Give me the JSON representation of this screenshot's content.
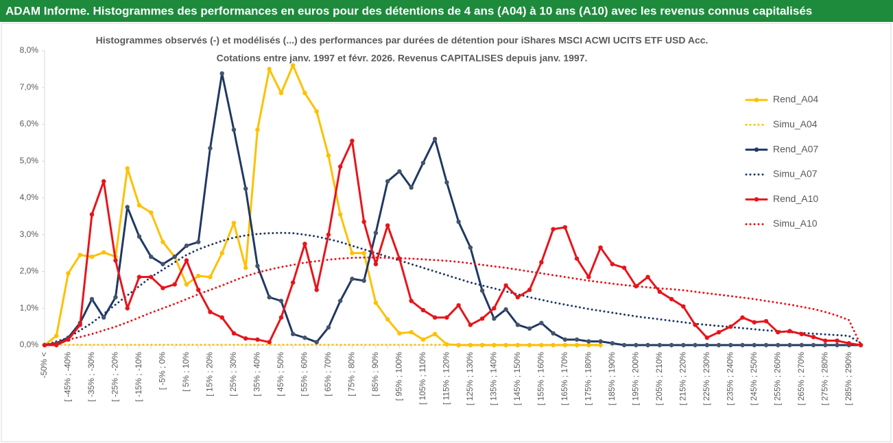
{
  "header": {
    "title": "ADAM Informe. Histogrammes des performances en euros pour des détentions de 4 ans (A04) à 10 ans (A10) avec les revenus connus capitalisés"
  },
  "chart_data": {
    "type": "line",
    "title": "Histogrammes observés (-) et modélisés (...) des performances par durées de détention pour iShares MSCI ACWI UCITS ETF USD Acc.",
    "subtitle": "Cotations entre janv. 1997 et févr. 2026. Revenus CAPITALISES depuis janv. 1997.",
    "categories": [
      "-50% <",
      null,
      "[ -45% ; -40%",
      null,
      "[ -35% ; -30%",
      null,
      "[ -25% ; -20%",
      null,
      "[ -15% ; -10%",
      null,
      "[ -5% ; 0%",
      null,
      "[ 5% ; 10%",
      null,
      "[ 15% ; 20%",
      null,
      "[ 25% ; 30%",
      null,
      "[ 35% ; 40%",
      null,
      "[ 45% ; 50%",
      null,
      "[ 55% ; 60%",
      null,
      "[ 65% ; 70%",
      null,
      "[ 75% ; 80%",
      null,
      "[ 85% ; 90%",
      null,
      "[ 95% ; 100%",
      null,
      "[ 105% ; 110%",
      null,
      "[ 115% ; 120%",
      null,
      "[ 125% ; 130%",
      null,
      "[ 135% ; 140%",
      null,
      "[ 145% ; 150%",
      null,
      "[ 155% ; 160%",
      null,
      "[ 165% ; 170%",
      null,
      "[ 175% ; 180%",
      null,
      "[ 185% ; 190%",
      null,
      "[ 195% ; 200%",
      null,
      "[ 205% ; 210%",
      null,
      "[ 215% ; 220%",
      null,
      "[ 225% ; 230%",
      null,
      "[ 235% ; 240%",
      null,
      "[ 245% ; 250%",
      null,
      "[ 255% ; 260%",
      null,
      "[ 265% ; 270%",
      null,
      "[ 275% ; 280%",
      null,
      "[ 285% ; 290%",
      null
    ],
    "series": [
      {
        "name": "Rend_A04",
        "color": "#ffc000",
        "line_style": "solid",
        "markers": true,
        "values": [
          0,
          0.25,
          1.95,
          2.45,
          2.4,
          2.52,
          2.4,
          4.8,
          3.8,
          3.6,
          2.8,
          2.4,
          1.65,
          1.88,
          1.85,
          2.5,
          3.32,
          2.1,
          5.85,
          7.5,
          6.85,
          7.6,
          6.85,
          6.35,
          5.15,
          3.55,
          2.5,
          2.5,
          1.15,
          0.7,
          0.32,
          0.35,
          0.15,
          0.3,
          0.02,
          0,
          0,
          0,
          0,
          0,
          0,
          0,
          0,
          0,
          0,
          0,
          0,
          0,
          null,
          null,
          null,
          null,
          null,
          null,
          null,
          null,
          null,
          null,
          null,
          null,
          null,
          null,
          null,
          null,
          null,
          null,
          null,
          null,
          null,
          null
        ]
      },
      {
        "name": "Simu_A04",
        "color": "#ffc000",
        "line_style": "dotted",
        "markers": false,
        "values": [
          0.01,
          0.01,
          0.01,
          0.01,
          0.01,
          0.01,
          0.01,
          0.01,
          0.01,
          0.01,
          0.01,
          0.01,
          0.01,
          0.01,
          0.01,
          0.01,
          0.01,
          0.01,
          0.01,
          0.01,
          0.01,
          0.01,
          0.01,
          0.01,
          0.01,
          0.01,
          0.01,
          0.01,
          0.01,
          0.01,
          0.01,
          0.01,
          0.01,
          0.01,
          0.01,
          0.01,
          0.01,
          0.01,
          0.01,
          0.01,
          0.01,
          0.01,
          0.01,
          0.01,
          0.01,
          0.01,
          0.01,
          0.01,
          null,
          null,
          null,
          null,
          null,
          null,
          null,
          null,
          null,
          null,
          null,
          null,
          null,
          null,
          null,
          null,
          null,
          null,
          null,
          null,
          null,
          null
        ]
      },
      {
        "name": "Rend_A07",
        "color": "#1f3864",
        "line_style": "solid",
        "markers": true,
        "values": [
          0,
          0.05,
          0.2,
          0.6,
          1.25,
          0.75,
          1.3,
          3.75,
          2.95,
          2.4,
          2.2,
          2.4,
          2.7,
          2.8,
          5.35,
          7.38,
          5.85,
          4.25,
          2.15,
          1.3,
          1.2,
          0.3,
          0.2,
          0.08,
          0.48,
          1.2,
          1.8,
          1.75,
          3.05,
          4.45,
          4.72,
          4.28,
          4.95,
          5.6,
          4.42,
          3.35,
          2.65,
          1.48,
          0.72,
          0.97,
          0.55,
          0.45,
          0.6,
          0.32,
          0.15,
          0.15,
          0.1,
          0.1,
          0.05,
          0,
          0,
          0,
          0,
          0,
          0,
          0,
          0,
          0,
          0,
          0,
          0,
          0,
          0,
          0,
          0,
          0,
          0,
          0,
          0,
          0
        ]
      },
      {
        "name": "Simu_A07",
        "color": "#1f3864",
        "line_style": "dotted",
        "markers": false,
        "values": [
          0,
          0.1,
          0.2,
          0.4,
          0.6,
          0.85,
          1.1,
          1.35,
          1.6,
          1.85,
          2.05,
          2.25,
          2.45,
          2.6,
          2.72,
          2.83,
          2.92,
          2.98,
          3.02,
          3.04,
          3.05,
          3.04,
          3.0,
          2.95,
          2.88,
          2.8,
          2.7,
          2.6,
          2.5,
          2.4,
          2.3,
          2.2,
          2.1,
          2.0,
          1.9,
          1.8,
          1.7,
          1.62,
          1.54,
          1.46,
          1.38,
          1.3,
          1.23,
          1.16,
          1.1,
          1.04,
          0.98,
          0.93,
          0.88,
          0.83,
          0.78,
          0.74,
          0.7,
          0.66,
          0.62,
          0.58,
          0.55,
          0.52,
          0.49,
          0.46,
          0.43,
          0.4,
          0.38,
          0.35,
          0.33,
          0.31,
          0.29,
          0.27,
          0.25,
          0.05
        ]
      },
      {
        "name": "Rend_A10",
        "color": "#e8141a",
        "line_style": "solid",
        "markers": true,
        "values": [
          0,
          0,
          0.15,
          0.55,
          3.55,
          4.45,
          2.3,
          1.0,
          1.85,
          1.85,
          1.55,
          1.65,
          2.3,
          1.5,
          0.9,
          0.75,
          0.32,
          0.18,
          0.15,
          0.08,
          0.75,
          1.7,
          2.75,
          1.5,
          3.0,
          4.85,
          5.55,
          3.35,
          2.2,
          3.25,
          2.35,
          1.2,
          0.95,
          0.75,
          0.75,
          1.08,
          0.55,
          0.72,
          1.0,
          1.62,
          1.3,
          1.5,
          2.25,
          3.15,
          3.2,
          2.35,
          1.85,
          2.65,
          2.2,
          2.1,
          1.6,
          1.85,
          1.45,
          1.25,
          1.05,
          0.55,
          0.2,
          0.35,
          0.5,
          0.75,
          0.62,
          0.65,
          0.35,
          0.38,
          0.3,
          0.22,
          0.12,
          0.12,
          0.05,
          0
        ]
      },
      {
        "name": "Simu_A10",
        "color": "#e8141a",
        "line_style": "dotted",
        "markers": false,
        "values": [
          0,
          0.08,
          0.15,
          0.22,
          0.3,
          0.4,
          0.5,
          0.62,
          0.75,
          0.88,
          1.0,
          1.12,
          1.25,
          1.38,
          1.5,
          1.62,
          1.75,
          1.87,
          1.97,
          2.05,
          2.12,
          2.18,
          2.24,
          2.28,
          2.32,
          2.35,
          2.37,
          2.38,
          2.38,
          2.37,
          2.36,
          2.35,
          2.33,
          2.31,
          2.29,
          2.26,
          2.22,
          2.18,
          2.14,
          2.1,
          2.05,
          2.0,
          1.95,
          1.9,
          1.85,
          1.8,
          1.75,
          1.71,
          1.67,
          1.63,
          1.6,
          1.57,
          1.54,
          1.52,
          1.49,
          1.45,
          1.41,
          1.37,
          1.33,
          1.29,
          1.25,
          1.2,
          1.15,
          1.1,
          1.04,
          0.98,
          0.9,
          0.8,
          0.68,
          0
        ]
      }
    ],
    "ylim": [
      0,
      8
    ],
    "yticks": [
      {
        "value": 0,
        "label": "0,0%"
      },
      {
        "value": 1,
        "label": "1,0%"
      },
      {
        "value": 2,
        "label": "2,0%"
      },
      {
        "value": 3,
        "label": "3,0%"
      },
      {
        "value": 4,
        "label": "4,0%"
      },
      {
        "value": 5,
        "label": "5,0%"
      },
      {
        "value": 6,
        "label": "6,0%"
      },
      {
        "value": 7,
        "label": "7,0%"
      },
      {
        "value": 8,
        "label": "8,0%"
      }
    ],
    "grid": false,
    "legend": "right"
  }
}
